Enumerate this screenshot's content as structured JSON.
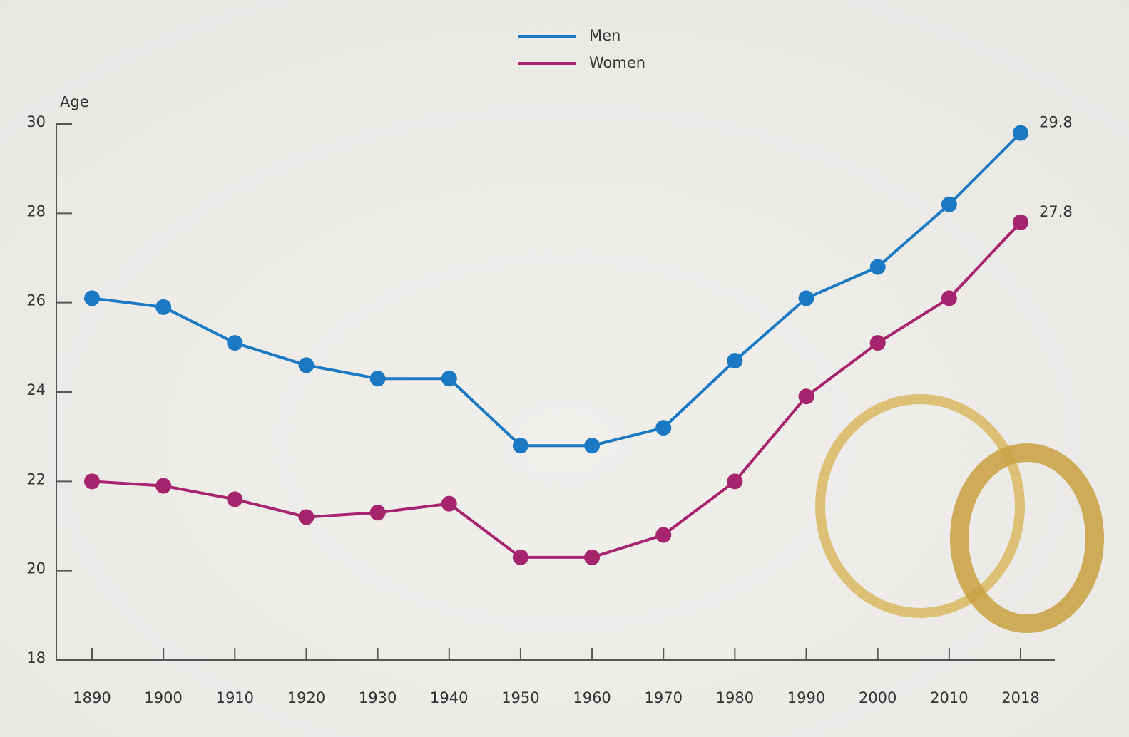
{
  "chart_data": {
    "type": "line",
    "y_label": "Age",
    "categories": [
      "1890",
      "1900",
      "1910",
      "1920",
      "1930",
      "1940",
      "1950",
      "1960",
      "1970",
      "1980",
      "1990",
      "2000",
      "2010",
      "2018"
    ],
    "series": [
      {
        "name": "Men",
        "color": "#1b79c3",
        "values": [
          26.1,
          25.9,
          25.1,
          24.6,
          24.3,
          24.3,
          22.8,
          22.8,
          23.2,
          24.7,
          26.1,
          26.8,
          28.2,
          29.8
        ]
      },
      {
        "name": "Women",
        "color": "#a6246e",
        "values": [
          22.0,
          21.9,
          21.6,
          21.2,
          21.3,
          21.5,
          20.3,
          20.3,
          20.8,
          22.0,
          23.9,
          25.1,
          26.1,
          27.8
        ]
      }
    ],
    "ylim": [
      18,
      30
    ],
    "yticks": [
      18,
      20,
      22,
      24,
      26,
      28,
      30
    ],
    "legend": "top"
  }
}
